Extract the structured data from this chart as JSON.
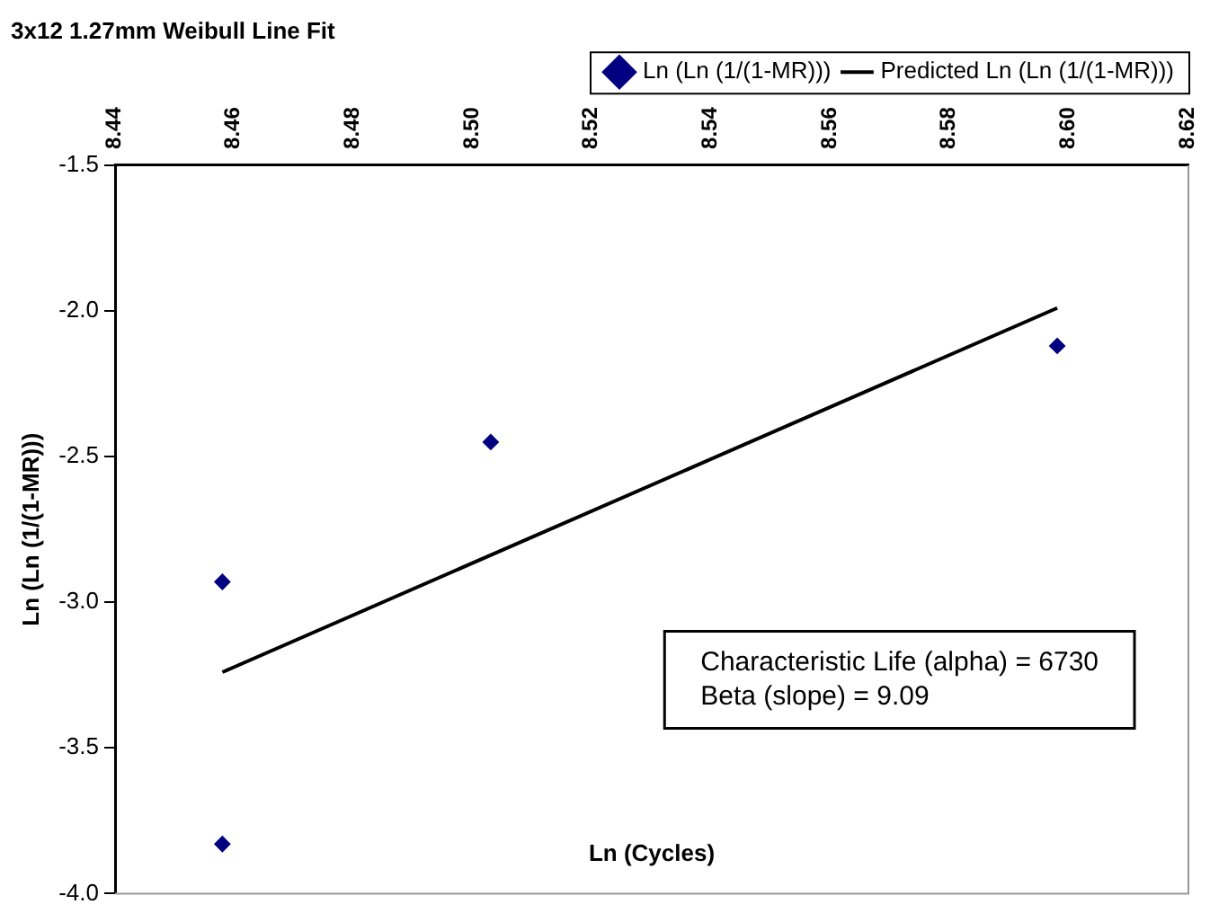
{
  "chart_data": {
    "type": "scatter",
    "title": "3x12 1.27mm Weibull Line Fit",
    "xlabel": "Ln (Cycles)",
    "ylabel": "Ln (Ln (1/(1-MR)))",
    "series": [
      {
        "name": "Ln (Ln (1/(1-MR)))",
        "type": "scatter",
        "color": "#000080",
        "marker": "diamond",
        "x": [
          8.458,
          8.458,
          8.503,
          8.598
        ],
        "values": [
          -2.93,
          -3.83,
          -2.45,
          -2.12
        ]
      },
      {
        "name": "Predicted Ln (Ln (1/(1-MR)))",
        "type": "line",
        "color": "#000000",
        "marker": "none",
        "x": [
          8.458,
          8.598
        ],
        "values": [
          -3.24,
          -1.99
        ]
      }
    ],
    "xlim": [
      8.44,
      8.62
    ],
    "xticks": [
      8.44,
      8.46,
      8.48,
      {
        "value": 8.5,
        "label": "8.50"
      },
      8.52,
      8.54,
      8.56,
      8.58,
      {
        "value": 8.6,
        "label": "8.60"
      },
      8.62
    ],
    "ylim": [
      -4.0,
      -1.5
    ],
    "yticks": [
      {
        "value": -4,
        "label": "-4.0"
      },
      -3.5,
      {
        "value": -3,
        "label": "-3.0"
      },
      -2.5,
      {
        "value": -2,
        "label": "-2.0"
      },
      -1.5
    ],
    "grid": false,
    "legend": "top right",
    "annotations": [
      "Characteristic Life (alpha) = 6730",
      "Beta (slope) = 9.09"
    ]
  }
}
